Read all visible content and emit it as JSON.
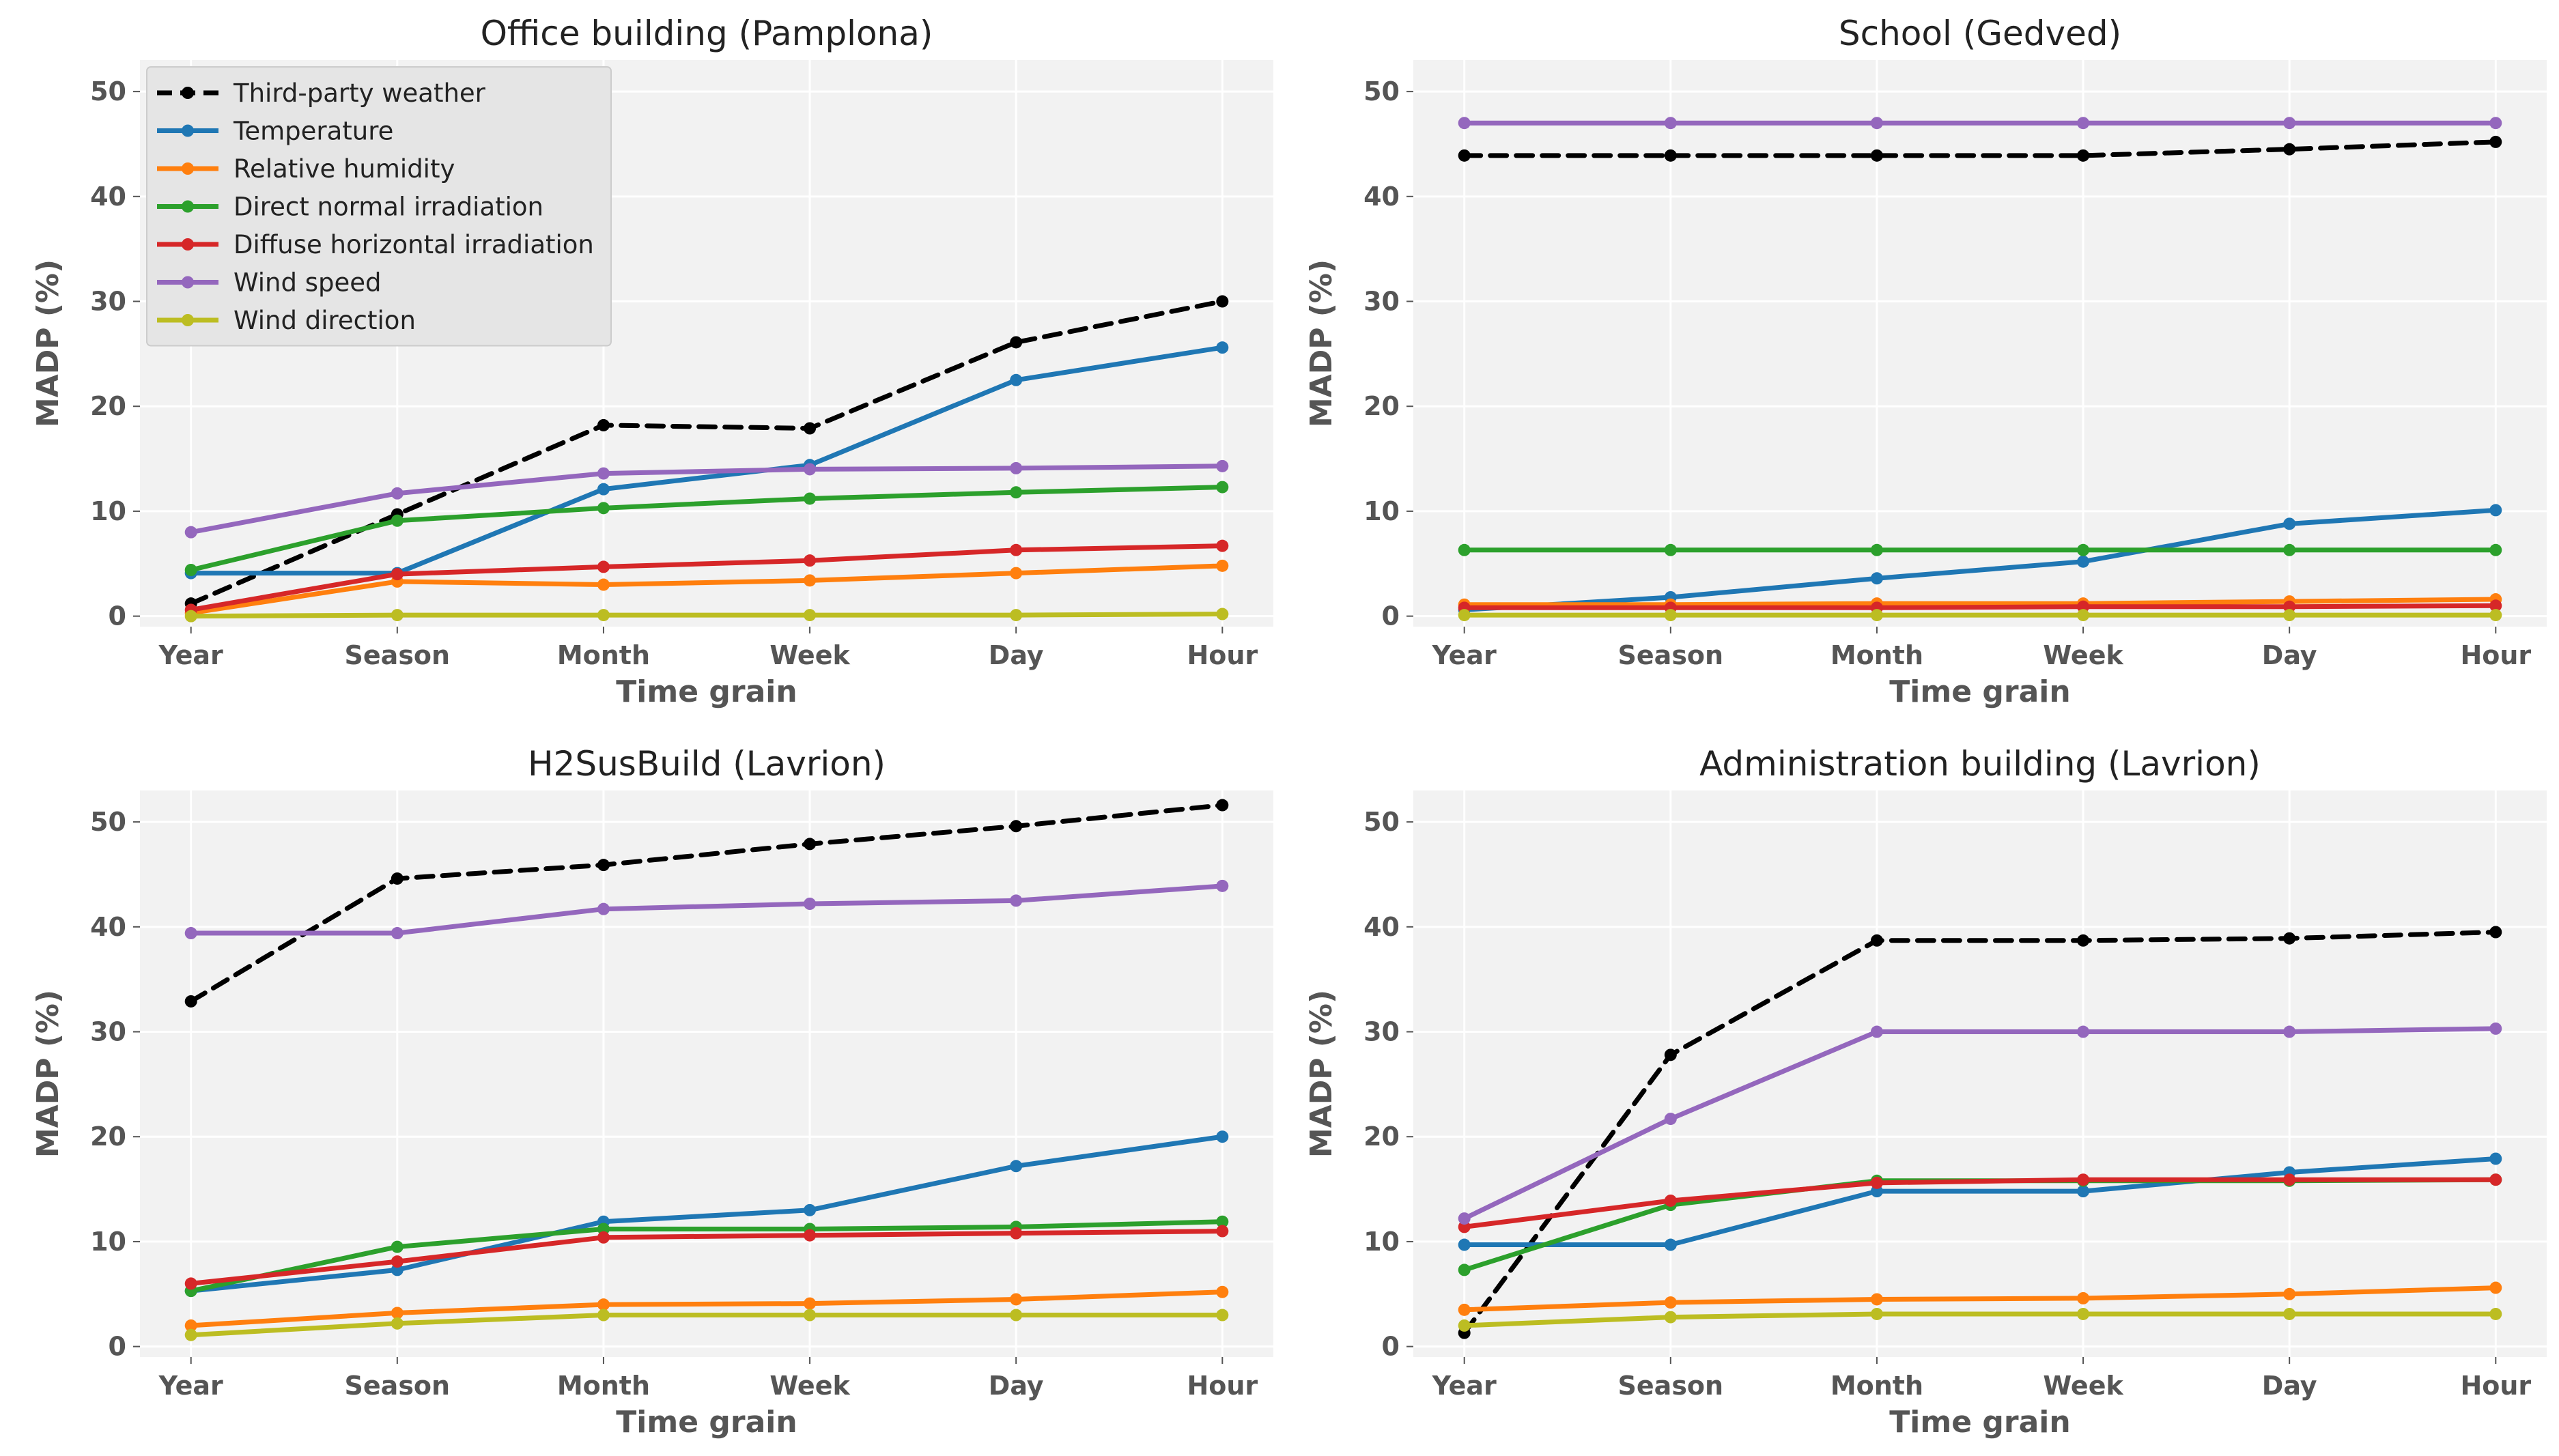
{
  "chart_data": {
    "type": "line",
    "layout": "2x2 grid",
    "shared": {
      "categories": [
        "Year",
        "Season",
        "Month",
        "Week",
        "Day",
        "Hour"
      ],
      "xlabel": "Time grain",
      "ylabel": "MADP (%)",
      "ylim": [
        -1,
        53
      ],
      "yticks": [
        0,
        10,
        20,
        30,
        40,
        50
      ],
      "grid": true,
      "series_styles": [
        {
          "name": "Third-party weather",
          "color": "#000000",
          "dash": true
        },
        {
          "name": "Temperature",
          "color": "#1f77b4",
          "dash": false
        },
        {
          "name": "Relative humidity",
          "color": "#ff7f0e",
          "dash": false
        },
        {
          "name": "Direct normal irradiation",
          "color": "#2ca02c",
          "dash": false
        },
        {
          "name": "Diffuse horizontal irradiation",
          "color": "#d62728",
          "dash": false
        },
        {
          "name": "Wind speed",
          "color": "#9467bd",
          "dash": false
        },
        {
          "name": "Wind direction",
          "color": "#bcbd22",
          "dash": false
        }
      ],
      "legend": {
        "panel": 0,
        "location": "top-left"
      }
    },
    "panels": [
      {
        "title": "Office building (Pamplona)",
        "series": [
          {
            "name": "Third-party weather",
            "values": [
              1.2,
              9.7,
              18.2,
              17.9,
              26.1,
              30.0
            ]
          },
          {
            "name": "Temperature",
            "values": [
              4.1,
              4.1,
              12.1,
              14.4,
              22.5,
              25.6
            ]
          },
          {
            "name": "Relative humidity",
            "values": [
              0.3,
              3.3,
              3.0,
              3.4,
              4.1,
              4.8
            ]
          },
          {
            "name": "Direct normal irradiation",
            "values": [
              4.4,
              9.1,
              10.3,
              11.2,
              11.8,
              12.3
            ]
          },
          {
            "name": "Diffuse horizontal irradiation",
            "values": [
              0.6,
              4.0,
              4.7,
              5.3,
              6.3,
              6.7
            ]
          },
          {
            "name": "Wind speed",
            "values": [
              8.0,
              11.7,
              13.6,
              14.0,
              14.1,
              14.3
            ]
          },
          {
            "name": "Wind direction",
            "values": [
              0.0,
              0.1,
              0.1,
              0.1,
              0.1,
              0.2
            ]
          }
        ]
      },
      {
        "title": "School (Gedved)",
        "series": [
          {
            "name": "Third-party weather",
            "values": [
              43.9,
              43.9,
              43.9,
              43.9,
              44.5,
              45.2
            ]
          },
          {
            "name": "Temperature",
            "values": [
              0.6,
              1.8,
              3.6,
              5.2,
              8.8,
              10.1
            ]
          },
          {
            "name": "Relative humidity",
            "values": [
              1.1,
              1.1,
              1.2,
              1.2,
              1.4,
              1.6
            ]
          },
          {
            "name": "Direct normal irradiation",
            "values": [
              6.3,
              6.3,
              6.3,
              6.3,
              6.3,
              6.3
            ]
          },
          {
            "name": "Diffuse horizontal irradiation",
            "values": [
              0.8,
              0.8,
              0.8,
              0.9,
              0.9,
              1.0
            ]
          },
          {
            "name": "Wind speed",
            "values": [
              47.0,
              47.0,
              47.0,
              47.0,
              47.0,
              47.0
            ]
          },
          {
            "name": "Wind direction",
            "values": [
              0.1,
              0.1,
              0.1,
              0.1,
              0.1,
              0.1
            ]
          }
        ]
      },
      {
        "title": "H2SusBuild (Lavrion)",
        "series": [
          {
            "name": "Third-party weather",
            "values": [
              32.9,
              44.6,
              45.9,
              47.9,
              49.6,
              51.6
            ]
          },
          {
            "name": "Temperature",
            "values": [
              5.3,
              7.3,
              11.9,
              13.0,
              17.2,
              20.0
            ]
          },
          {
            "name": "Relative humidity",
            "values": [
              2.0,
              3.2,
              4.0,
              4.1,
              4.5,
              5.2
            ]
          },
          {
            "name": "Direct normal irradiation",
            "values": [
              5.3,
              9.5,
              11.2,
              11.2,
              11.4,
              11.9
            ]
          },
          {
            "name": "Diffuse horizontal irradiation",
            "values": [
              6.0,
              8.1,
              10.4,
              10.6,
              10.8,
              11.0
            ]
          },
          {
            "name": "Wind speed",
            "values": [
              39.4,
              39.4,
              41.7,
              42.2,
              42.5,
              43.9
            ]
          },
          {
            "name": "Wind direction",
            "values": [
              1.1,
              2.2,
              3.0,
              3.0,
              3.0,
              3.0
            ]
          }
        ]
      },
      {
        "title": "Administration building (Lavrion)",
        "series": [
          {
            "name": "Third-party weather",
            "values": [
              1.3,
              27.8,
              38.7,
              38.7,
              38.9,
              39.5
            ]
          },
          {
            "name": "Temperature",
            "values": [
              9.7,
              9.7,
              14.8,
              14.8,
              16.6,
              17.9
            ]
          },
          {
            "name": "Relative humidity",
            "values": [
              3.5,
              4.2,
              4.5,
              4.6,
              5.0,
              5.6
            ]
          },
          {
            "name": "Direct normal irradiation",
            "values": [
              7.3,
              13.5,
              15.8,
              15.8,
              15.8,
              15.9
            ]
          },
          {
            "name": "Diffuse horizontal irradiation",
            "values": [
              11.4,
              13.9,
              15.6,
              15.9,
              15.9,
              15.9
            ]
          },
          {
            "name": "Wind speed",
            "values": [
              12.2,
              21.7,
              30.0,
              30.0,
              30.0,
              30.3
            ]
          },
          {
            "name": "Wind direction",
            "values": [
              2.0,
              2.8,
              3.1,
              3.1,
              3.1,
              3.1
            ]
          }
        ]
      }
    ]
  }
}
